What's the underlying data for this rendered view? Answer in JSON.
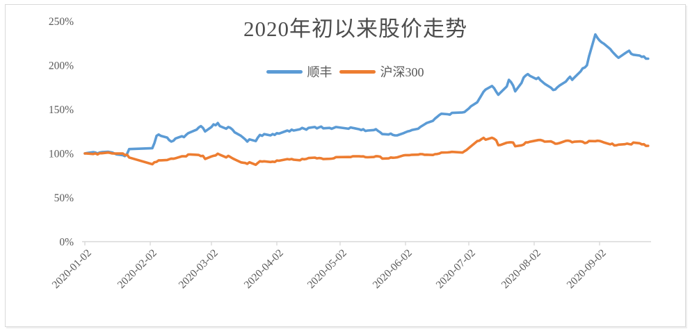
{
  "chart_data": {
    "type": "line",
    "title": "2020年初以来股价走势",
    "legend_position": "top-center",
    "grid": false,
    "colors": {
      "axis": "#d9d9d9",
      "tick_text": "#595959",
      "title_text": "#4d4d4d",
      "border": "#d9d9d9",
      "background": "#ffffff"
    },
    "y_axis": {
      "tick_labels": [
        "0%",
        "50%",
        "100%",
        "150%",
        "200%",
        "250%"
      ],
      "tick_values": [
        0,
        50,
        100,
        150,
        200,
        250
      ],
      "range": [
        0,
        250
      ],
      "unit": "percent of 2020-01-02 price"
    },
    "x_axis": {
      "tick_labels": [
        "2020-01-02",
        "2020-02-02",
        "2020-03-02",
        "2020-04-02",
        "2020-05-02",
        "2020-06-02",
        "2020-07-02",
        "2020-08-02",
        "2020-09-02"
      ],
      "tick_days": [
        0,
        31,
        60,
        91,
        121,
        152,
        182,
        213,
        244
      ],
      "domain_days": [
        0,
        268
      ],
      "label_rotation_deg": -45
    },
    "days": [
      0,
      1,
      4,
      5,
      6,
      7,
      8,
      11,
      12,
      13,
      14,
      15,
      18,
      19,
      20,
      21,
      32,
      33,
      34,
      35,
      36,
      39,
      40,
      41,
      42,
      43,
      46,
      47,
      48,
      49,
      50,
      53,
      54,
      55,
      56,
      57,
      60,
      61,
      62,
      63,
      64,
      67,
      68,
      69,
      70,
      71,
      74,
      75,
      76,
      77,
      78,
      81,
      82,
      83,
      84,
      85,
      88,
      89,
      90,
      91,
      92,
      96,
      97,
      98,
      99,
      102,
      103,
      104,
      105,
      106,
      109,
      110,
      111,
      112,
      113,
      116,
      117,
      118,
      119,
      125,
      126,
      127,
      130,
      131,
      132,
      133,
      134,
      137,
      138,
      139,
      140,
      141,
      144,
      145,
      146,
      147,
      148,
      151,
      152,
      153,
      154,
      155,
      158,
      159,
      160,
      161,
      162,
      165,
      166,
      167,
      168,
      169,
      172,
      173,
      174,
      179,
      180,
      181,
      182,
      183,
      186,
      187,
      188,
      189,
      190,
      193,
      194,
      195,
      196,
      197,
      200,
      201,
      202,
      203,
      204,
      207,
      208,
      209,
      210,
      211,
      214,
      215,
      216,
      217,
      218,
      221,
      222,
      223,
      224,
      225,
      228,
      229,
      230,
      231,
      232,
      235,
      236,
      237,
      238,
      239,
      242,
      243,
      244,
      245,
      246,
      249,
      250,
      251,
      252,
      253,
      256,
      257,
      258,
      259,
      260,
      263,
      264,
      265,
      266,
      267
    ],
    "series": [
      {
        "id": "shunfeng",
        "name": "顺丰",
        "color": "#5B9BD5",
        "values": [
          100,
          100.5,
          101.5,
          101,
          100,
          101,
          101.5,
          102,
          101.5,
          101,
          100,
          99,
          98,
          97,
          99.5,
          105,
          106,
          112,
          120,
          121.5,
          120,
          118,
          115,
          113.5,
          114.5,
          117,
          119.5,
          118.5,
          121,
          123,
          124,
          127,
          129.5,
          131,
          129,
          125,
          130,
          133,
          132,
          134.5,
          131,
          128,
          130,
          129,
          127,
          124,
          120,
          118,
          116,
          113.5,
          116,
          114,
          118,
          121,
          120,
          122,
          120.5,
          122,
          121,
          123,
          122.5,
          126,
          125,
          127,
          126,
          127.5,
          129,
          128,
          127,
          129,
          130,
          128.5,
          129.5,
          130.5,
          128.5,
          129,
          128,
          129,
          130,
          128,
          129.5,
          129,
          127.5,
          126.5,
          127.5,
          125.5,
          126,
          126.5,
          127.5,
          125.5,
          124,
          122,
          121.5,
          122.5,
          121,
          120.5,
          120.5,
          123,
          124,
          125,
          125.5,
          126.5,
          128,
          130,
          131.5,
          133,
          134.5,
          137,
          139.5,
          141.5,
          143.5,
          145,
          144.5,
          144,
          146,
          146.5,
          147,
          149,
          151,
          153.5,
          158,
          162,
          166,
          170,
          172.5,
          176.5,
          174,
          170,
          166.5,
          169,
          176,
          183.5,
          181,
          177,
          170.5,
          180,
          186,
          188.5,
          190,
          188,
          184.5,
          186,
          183,
          181,
          179,
          174.5,
          172,
          172.5,
          175,
          177,
          181.5,
          184.5,
          187,
          183.5,
          186,
          193,
          196.5,
          197.5,
          200,
          210,
          235,
          231,
          228,
          226,
          224.5,
          218.5,
          215.5,
          213,
          210.5,
          208.5,
          213.5,
          215,
          216.5,
          213,
          212,
          211,
          209.5,
          210,
          207.5,
          207.5
        ]
      },
      {
        "id": "hushen300",
        "name": "沪深300",
        "color": "#ED7D31",
        "values": [
          100,
          99.9,
          99.4,
          100.1,
          98.9,
          100.2,
          100.2,
          101,
          100.6,
          100,
          99.9,
          99.9,
          99.9,
          98.2,
          98.5,
          95.4,
          87.8,
          90.1,
          90.5,
          92.2,
          92.2,
          92.6,
          93.5,
          94.2,
          94,
          94.6,
          96.8,
          96.8,
          96.7,
          98.8,
          98.9,
          98.5,
          98.3,
          97,
          97.3,
          93.8,
          96.6,
          97.3,
          97.8,
          99.8,
          98.6,
          95.5,
          97.3,
          95.9,
          94.5,
          93.3,
          89.9,
          89.5,
          89.2,
          88.3,
          90,
          87.2,
          89.3,
          91.2,
          90.8,
          91.1,
          90.3,
          90.7,
          90.4,
          92,
          91.7,
          93.6,
          93.2,
          93.7,
          92.9,
          92.3,
          93.8,
          93.4,
          93.8,
          94.8,
          95.3,
          94.4,
          94.8,
          94.6,
          93.6,
          93.9,
          94.1,
          94.5,
          95.8,
          96,
          95.9,
          96.8,
          96.8,
          96.6,
          96.7,
          95.8,
          95.7,
          96,
          96.9,
          96.8,
          96.3,
          94.2,
          94.4,
          95.4,
          95.1,
          95.3,
          95.6,
          97.8,
          98.1,
          98.1,
          98.1,
          98.5,
          98.7,
          99.3,
          99.2,
          98.5,
          98.6,
          98.3,
          99.2,
          99.4,
          99.9,
          101,
          101.2,
          101.4,
          101.8,
          101,
          102.6,
          104,
          106.1,
          108,
          114,
          114.5,
          116.2,
          117.7,
          115.6,
          117.8,
          116.7,
          114.9,
          109.4,
          109.6,
          112.2,
          112.5,
          112.7,
          112.4,
          108.2,
          109.2,
          110.1,
          112.6,
          112.5,
          113.3,
          114.7,
          115.2,
          115.3,
          114.6,
          113.4,
          113.7,
          112.5,
          111.1,
          111.2,
          111.8,
          114.3,
          114.6,
          114.1,
          112.7,
          113.3,
          113.7,
          113.2,
          111.7,
          112.3,
          114.1,
          113.9,
          114.4,
          114.2,
          113.5,
          112.5,
          110.4,
          111.2,
          109.1,
          109.3,
          110,
          110.5,
          111.2,
          110.6,
          110.2,
          112.4,
          111.6,
          110.3,
          110.5,
          108.6,
          108.7
        ]
      }
    ]
  }
}
